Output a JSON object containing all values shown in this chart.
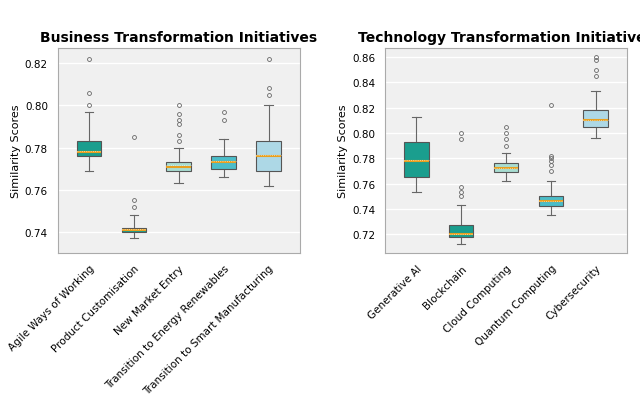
{
  "left_title": "Business Transformation Initiatives",
  "right_title": "Technology Transformation Initiatives",
  "ylabel": "Similarity Scores",
  "left_categories": [
    "Agile Ways of Working",
    "Product Customisation",
    "New Market Entry",
    "Transition to Energy Renewables",
    "Transition to Smart Manufacturing"
  ],
  "right_categories": [
    "Generative AI",
    "Blockchain",
    "Cloud Computing",
    "Quantum Computing",
    "Cybersecurity"
  ],
  "left_box_colors": [
    "#1a9e8e",
    "#1a9e8e",
    "#a8ddd1",
    "#4bbdc9",
    "#add8e6"
  ],
  "right_box_colors": [
    "#1a9e8e",
    "#1a9e8e",
    "#a8ddd1",
    "#4bbdc9",
    "#add8e6"
  ],
  "left_median_color": "#e8a020",
  "right_median_color": "#e8a020",
  "left_data": {
    "Agile Ways of Working": {
      "whislo": 0.769,
      "q1": 0.776,
      "med": 0.778,
      "q3": 0.783,
      "whishi": 0.797,
      "fliers": [
        0.8,
        0.806,
        0.822
      ]
    },
    "Product Customisation": {
      "whislo": 0.737,
      "q1": 0.74,
      "med": 0.741,
      "q3": 0.742,
      "whishi": 0.748,
      "fliers": [
        0.752,
        0.755,
        0.785
      ]
    },
    "New Market Entry": {
      "whislo": 0.763,
      "q1": 0.769,
      "med": 0.771,
      "q3": 0.773,
      "whishi": 0.78,
      "fliers": [
        0.783,
        0.786,
        0.791,
        0.793,
        0.796,
        0.8
      ]
    },
    "Transition to Energy Renewables": {
      "whislo": 0.766,
      "q1": 0.77,
      "med": 0.773,
      "q3": 0.776,
      "whishi": 0.784,
      "fliers": [
        0.793,
        0.797
      ]
    },
    "Transition to Smart Manufacturing": {
      "whislo": 0.762,
      "q1": 0.769,
      "med": 0.776,
      "q3": 0.783,
      "whishi": 0.8,
      "fliers": [
        0.805,
        0.808,
        0.822
      ]
    }
  },
  "right_data": {
    "Generative AI": {
      "whislo": 0.753,
      "q1": 0.765,
      "med": 0.778,
      "q3": 0.793,
      "whishi": 0.813,
      "fliers": []
    },
    "Blockchain": {
      "whislo": 0.712,
      "q1": 0.718,
      "med": 0.72,
      "q3": 0.727,
      "whishi": 0.743,
      "fliers": [
        0.75,
        0.753,
        0.757,
        0.795,
        0.8
      ]
    },
    "Cloud Computing": {
      "whislo": 0.762,
      "q1": 0.769,
      "med": 0.772,
      "q3": 0.776,
      "whishi": 0.784,
      "fliers": [
        0.79,
        0.795,
        0.8,
        0.805
      ]
    },
    "Quantum Computing": {
      "whislo": 0.735,
      "q1": 0.742,
      "med": 0.746,
      "q3": 0.75,
      "whishi": 0.762,
      "fliers": [
        0.77,
        0.775,
        0.778,
        0.78,
        0.782,
        0.822
      ]
    },
    "Cybersecurity": {
      "whislo": 0.796,
      "q1": 0.805,
      "med": 0.81,
      "q3": 0.818,
      "whishi": 0.833,
      "fliers": [
        0.845,
        0.85,
        0.858,
        0.86
      ]
    }
  },
  "left_ylim": [
    0.73,
    0.827
  ],
  "right_ylim": [
    0.705,
    0.867
  ],
  "left_yticks": [
    0.74,
    0.76,
    0.78,
    0.8,
    0.82
  ],
  "right_yticks": [
    0.72,
    0.74,
    0.76,
    0.78,
    0.8,
    0.82,
    0.84,
    0.86
  ],
  "background_color": "#f0f0f0",
  "grid_color": "#ffffff",
  "title_fontsize": 10,
  "label_fontsize": 8,
  "tick_fontsize": 7.5,
  "box_width": 0.55,
  "whisker_color": "#666666",
  "box_edge_color": "#555555"
}
